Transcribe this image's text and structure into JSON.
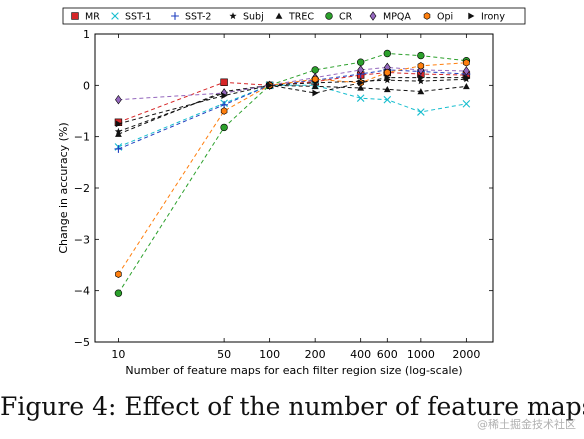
{
  "caption": "Figure 4: Effect of the number of feature maps.",
  "watermark": "@稀土掘金技术社区",
  "chart_data": {
    "type": "line",
    "xlabel": "Number of feature maps for each filter region size (log-scale)",
    "ylabel": "Change in accuracy (%)",
    "x_scale": "log",
    "x": [
      10,
      50,
      100,
      200,
      400,
      600,
      1000,
      2000
    ],
    "x_tick_labels": [
      "10",
      "50",
      "100",
      "200",
      "400",
      "600",
      "1000",
      "2000"
    ],
    "xlim": [
      7,
      3000
    ],
    "ylim": [
      -5,
      1
    ],
    "y_ticks": [
      -5,
      -4,
      -3,
      -2,
      -1,
      0,
      1
    ],
    "y_tick_labels": [
      "−5",
      "−4",
      "−3",
      "−2",
      "−1",
      "0",
      "1"
    ],
    "line_style": "dashed",
    "legend_position": "top",
    "series": [
      {
        "name": "MR",
        "color": "#d62728",
        "marker": "square",
        "values": [
          -0.72,
          0.06,
          0.0,
          0.07,
          0.2,
          0.25,
          0.22,
          0.2
        ]
      },
      {
        "name": "SST-1",
        "color": "#17becf",
        "marker": "x",
        "values": [
          -1.2,
          -0.35,
          0.0,
          0.0,
          -0.25,
          -0.28,
          -0.52,
          -0.36
        ]
      },
      {
        "name": "SST-2",
        "color": "#1f3fbf",
        "marker": "plus",
        "values": [
          -1.24,
          -0.38,
          0.0,
          0.1,
          0.22,
          0.3,
          0.27,
          0.22
        ]
      },
      {
        "name": "Subj",
        "color": "#111111",
        "marker": "star",
        "values": [
          -0.9,
          -0.15,
          0.0,
          0.05,
          0.08,
          0.1,
          0.08,
          0.12
        ]
      },
      {
        "name": "TREC",
        "color": "#111111",
        "marker": "triangle",
        "values": [
          -0.95,
          -0.12,
          0.0,
          -0.02,
          -0.05,
          -0.08,
          -0.12,
          -0.02
        ]
      },
      {
        "name": "CR",
        "color": "#2ca02c",
        "marker": "circle",
        "values": [
          -4.05,
          -0.82,
          0.0,
          0.3,
          0.45,
          0.62,
          0.58,
          0.48
        ]
      },
      {
        "name": "MPQA",
        "color": "#9467bd",
        "marker": "diamond",
        "values": [
          -0.28,
          -0.15,
          0.0,
          0.15,
          0.3,
          0.35,
          0.3,
          0.28
        ]
      },
      {
        "name": "Opi",
        "color": "#ff7f0e",
        "marker": "hexagon",
        "values": [
          -3.68,
          -0.5,
          0.0,
          0.12,
          0.05,
          0.25,
          0.38,
          0.44
        ]
      },
      {
        "name": "Irony",
        "color": "#111111",
        "marker": "tri-right",
        "values": [
          -0.75,
          -0.2,
          0.0,
          -0.15,
          0.05,
          0.15,
          0.15,
          0.15
        ]
      }
    ]
  }
}
